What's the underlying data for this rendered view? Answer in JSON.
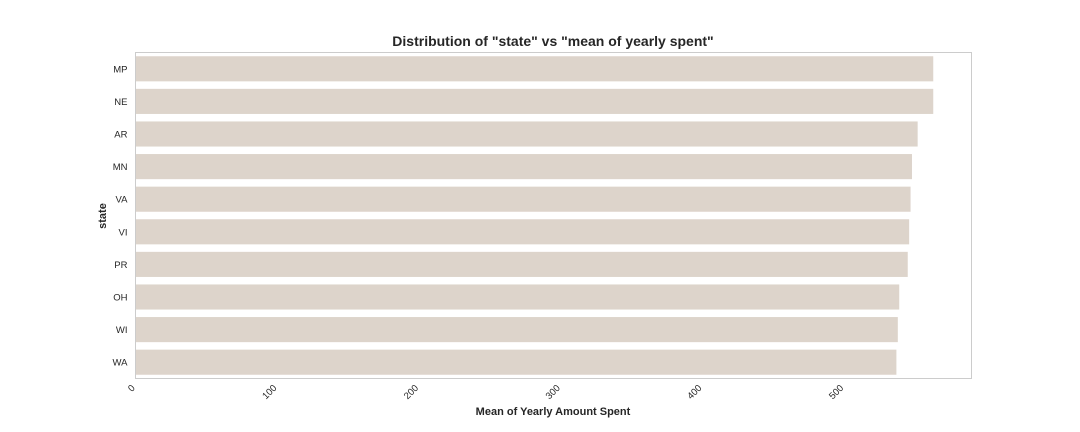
{
  "chart_data": {
    "type": "bar",
    "orientation": "horizontal",
    "title": "Distribution of \"state\" vs \"mean of yearly spent\"",
    "xlabel": "Mean of Yearly Amount Spent",
    "ylabel": "state",
    "categories": [
      "MP",
      "NE",
      "AR",
      "MN",
      "VA",
      "VI",
      "PR",
      "OH",
      "WI",
      "WA"
    ],
    "values": [
      563,
      563,
      552,
      548,
      547,
      546,
      545,
      539,
      538,
      537
    ],
    "xlim": [
      0,
      590
    ],
    "xticks": [
      0,
      100,
      200,
      300,
      400,
      500
    ],
    "xtick_labels": [
      "0",
      "100",
      "200",
      "300",
      "400",
      "500"
    ],
    "grid": false,
    "bar_color": "#ddd4cb",
    "frame_color": "#cccccc",
    "text_color": "#262626"
  }
}
